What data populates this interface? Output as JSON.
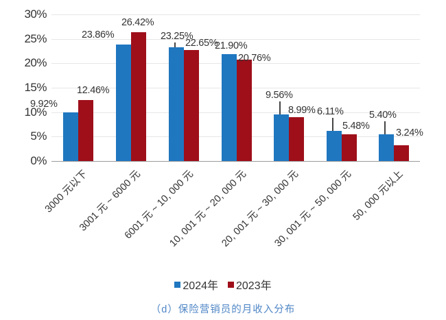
{
  "chart_data": {
    "type": "bar",
    "title": "",
    "xlabel": "",
    "ylabel": "",
    "ylim": [
      0,
      30
    ],
    "yticks": [
      "0%",
      "5%",
      "10%",
      "15%",
      "20%",
      "25%",
      "30%"
    ],
    "grid": true,
    "legend_position": "bottom",
    "categories": [
      "3000 元以下",
      "3001 元 ~ 6000 元",
      "6001 元 ~ 10, 000 元",
      "10, 001 元 ~ 20, 000 元",
      "20, 001 元 ~ 30, 000 元",
      "30, 001 元 ~ 50, 000 元",
      "50, 000 元以上"
    ],
    "series": [
      {
        "name": "2024年",
        "color": "#1f77c0",
        "values": [
          9.92,
          23.86,
          23.25,
          21.9,
          9.56,
          6.11,
          5.4
        ],
        "labels": [
          "9.92%",
          "23.86%",
          "23.25%",
          "21.90%",
          "9.56%",
          "6.11%",
          "5.40%"
        ]
      },
      {
        "name": "2023年",
        "color": "#9e0f1a",
        "values": [
          12.46,
          26.42,
          22.65,
          20.76,
          8.99,
          5.48,
          3.24
        ],
        "labels": [
          "12.46%",
          "26.42%",
          "22.65%",
          "20.76%",
          "8.99%",
          "5.48%",
          "3.24%"
        ]
      }
    ],
    "caption": "（d）保险营销员的月收入分布"
  },
  "legend": {
    "items": [
      {
        "label": "2024年",
        "color": "#1f77c0"
      },
      {
        "label": "2023年",
        "color": "#9e0f1a"
      }
    ]
  },
  "caption": "（d）保险营销员的月收入分布"
}
